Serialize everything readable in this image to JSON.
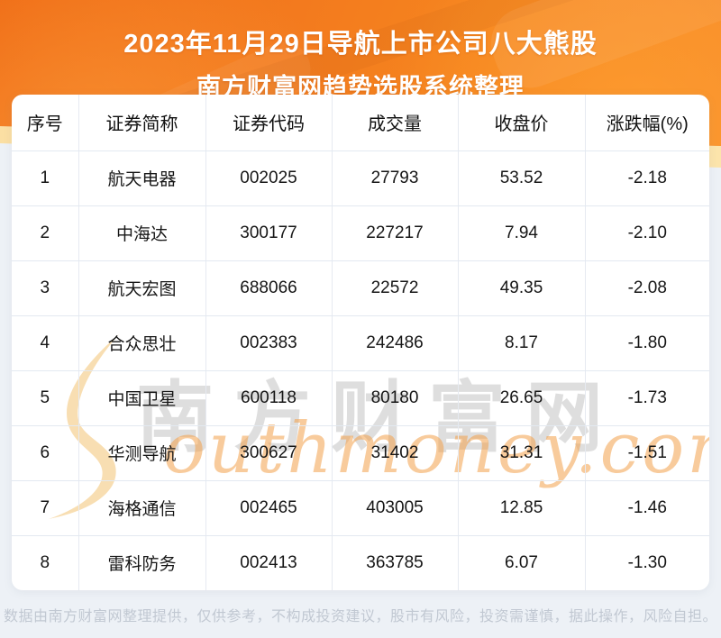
{
  "header": {
    "title_line1": "2023年11月29日导航上市公司八大熊股",
    "title_line2": "南方财富网趋势选股系统整理"
  },
  "chart_data": {
    "type": "table",
    "title": "2023年11月29日导航上市公司八大熊股",
    "subtitle": "南方财富网趋势选股系统整理",
    "columns": [
      "序号",
      "证券简称",
      "证券代码",
      "成交量",
      "收盘价",
      "涨跌幅(%)"
    ],
    "rows": [
      [
        "1",
        "航天电器",
        "002025",
        "27793",
        "53.52",
        "-2.18"
      ],
      [
        "2",
        "中海达",
        "300177",
        "227217",
        "7.94",
        "-2.10"
      ],
      [
        "3",
        "航天宏图",
        "688066",
        "22572",
        "49.35",
        "-2.08"
      ],
      [
        "4",
        "合众思壮",
        "002383",
        "242486",
        "8.17",
        "-1.80"
      ],
      [
        "5",
        "中国卫星",
        "600118",
        "80180",
        "26.65",
        "-1.73"
      ],
      [
        "6",
        "华测导航",
        "300627",
        "31402",
        "31.31",
        "-1.51"
      ],
      [
        "7",
        "海格通信",
        "002465",
        "403005",
        "12.85",
        "-1.46"
      ],
      [
        "8",
        "雷科防务",
        "002413",
        "363785",
        "6.07",
        "-1.30"
      ]
    ]
  },
  "watermark": {
    "cn": "南方财富网",
    "en_rest": "outhmoney.com"
  },
  "footer": {
    "disclaimer": "数据由南方财富网整理提供，仅供参考，不构成投资建议，股市有风险，投资需谨慎，据此操作，风险自担。"
  },
  "colors": {
    "hero_orange": "#f3791d",
    "hero_orange_dark": "#ee6712",
    "cream_wave": "#fbdfa3",
    "page_bg": "#edf1f6",
    "table_bg": "#ffffff",
    "table_border": "#e4e9f0",
    "text": "#161616",
    "footer_text": "#c1c8d2",
    "watermark_gray": "rgba(90,90,90,0.20)",
    "watermark_orange": "rgba(242,160,75,0.55)",
    "watermark_cream": "#f8dcae"
  }
}
